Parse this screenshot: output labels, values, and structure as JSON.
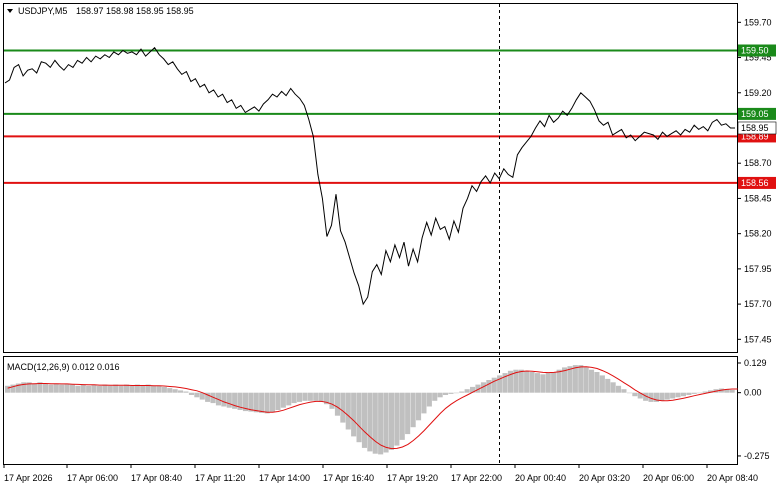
{
  "header": {
    "symbol": "USDJPY,M5",
    "ohlc": "158.97 158.98 158.95 158.95",
    "arrow": "triangle-down-icon"
  },
  "macd_header": "MACD(12,26,9) 0.012 0.016",
  "chart_data": [
    {
      "type": "line",
      "name": "price",
      "ylim": [
        157.36,
        159.83
      ],
      "y_ticks": [
        "159.70",
        "159.45",
        "159.20",
        "158.95",
        "158.70",
        "158.45",
        "158.20",
        "157.95",
        "157.70",
        "157.45"
      ],
      "x_labels": [
        "17 Apr 2026",
        "17 Apr 06:00",
        "17 Apr 08:40",
        "17 Apr 11:20",
        "17 Apr 14:00",
        "17 Apr 16:40",
        "17 Apr 19:20",
        "17 Apr 22:00",
        "20 Apr 00:40",
        "20 Apr 03:20",
        "20 Apr 06:00",
        "20 Apr 08:40"
      ],
      "levels": [
        {
          "label": "159.50",
          "value": 159.5,
          "color": "#1a8a1a"
        },
        {
          "label": "159.05",
          "value": 159.05,
          "color": "#1a8a1a"
        },
        {
          "label": "158.89",
          "value": 158.89,
          "color": "#e01010"
        },
        {
          "label": "158.56",
          "value": 158.56,
          "color": "#e01010"
        }
      ],
      "current_price": {
        "label": "158.95",
        "value": 158.95
      },
      "session_divider_label": "17 Apr 22:00",
      "close": [
        159.27,
        159.29,
        159.38,
        159.4,
        159.32,
        159.36,
        159.37,
        159.34,
        159.42,
        159.41,
        159.38,
        159.43,
        159.39,
        159.36,
        159.4,
        159.38,
        159.43,
        159.41,
        159.45,
        159.42,
        159.46,
        159.44,
        159.47,
        159.45,
        159.49,
        159.47,
        159.5,
        159.48,
        159.49,
        159.47,
        159.51,
        159.46,
        159.49,
        159.52,
        159.47,
        159.44,
        159.4,
        159.42,
        159.37,
        159.33,
        159.35,
        159.28,
        159.3,
        159.24,
        159.26,
        159.2,
        159.22,
        159.17,
        159.19,
        159.13,
        159.15,
        159.09,
        159.11,
        159.06,
        159.08,
        159.1,
        159.07,
        159.12,
        159.15,
        159.19,
        159.17,
        159.21,
        159.18,
        159.23,
        159.19,
        159.16,
        159.11,
        159.01,
        158.89,
        158.62,
        158.45,
        158.18,
        158.26,
        158.48,
        158.22,
        158.14,
        158.03,
        157.92,
        157.83,
        157.7,
        157.75,
        157.93,
        157.98,
        157.91,
        158.08,
        158.0,
        158.12,
        158.03,
        158.14,
        157.97,
        158.09,
        158.0,
        158.17,
        158.28,
        158.19,
        158.31,
        158.23,
        158.25,
        158.16,
        158.29,
        158.21,
        158.38,
        158.45,
        158.54,
        158.5,
        158.57,
        158.61,
        158.56,
        158.63,
        158.59,
        158.66,
        158.62,
        158.6,
        158.76,
        158.81,
        158.85,
        158.89,
        158.95,
        159.0,
        158.96,
        159.04,
        158.99,
        159.02,
        159.07,
        159.04,
        159.09,
        159.15,
        159.2,
        159.17,
        159.14,
        159.08,
        159.0,
        158.97,
        158.99,
        158.9,
        158.92,
        158.94,
        158.88,
        158.9,
        158.86,
        158.89,
        158.92,
        158.91,
        158.9,
        158.87,
        158.92,
        158.89,
        158.91,
        158.93,
        158.9,
        158.94,
        158.92,
        158.97,
        158.94,
        158.96,
        158.93,
        158.99,
        159.01,
        158.97,
        158.98,
        158.95,
        158.95
      ]
    },
    {
      "type": "bar",
      "name": "MACD",
      "ylim": [
        -0.31,
        0.155
      ],
      "y_ticks": [
        "0.129",
        "0.00",
        "-0.275"
      ],
      "histogram": [
        0.03,
        0.035,
        0.04,
        0.045,
        0.045,
        0.04,
        0.045,
        0.04,
        0.035,
        0.04,
        0.035,
        0.04,
        0.035,
        0.03,
        0.035,
        0.03,
        0.035,
        0.03,
        0.035,
        0.03,
        0.035,
        0.03,
        0.035,
        0.03,
        0.035,
        0.03,
        0.035,
        0.03,
        0.03,
        0.025,
        0.02,
        0.015,
        0.01,
        0.005,
        -0.01,
        -0.02,
        -0.03,
        -0.04,
        -0.045,
        -0.055,
        -0.06,
        -0.065,
        -0.07,
        -0.075,
        -0.08,
        -0.082,
        -0.085,
        -0.088,
        -0.09,
        -0.085,
        -0.075,
        -0.065,
        -0.055,
        -0.045,
        -0.04,
        -0.035,
        -0.035,
        -0.035,
        -0.04,
        -0.05,
        -0.07,
        -0.1,
        -0.13,
        -0.16,
        -0.19,
        -0.215,
        -0.24,
        -0.255,
        -0.265,
        -0.268,
        -0.26,
        -0.248,
        -0.23,
        -0.205,
        -0.18,
        -0.15,
        -0.12,
        -0.09,
        -0.06,
        -0.035,
        -0.02,
        -0.01,
        -0.005,
        0.0,
        0.005,
        0.015,
        0.025,
        0.035,
        0.045,
        0.055,
        0.065,
        0.075,
        0.085,
        0.095,
        0.1,
        0.1,
        0.095,
        0.09,
        0.085,
        0.08,
        0.085,
        0.09,
        0.1,
        0.11,
        0.115,
        0.12,
        0.12,
        0.11,
        0.1,
        0.09,
        0.075,
        0.06,
        0.045,
        0.03,
        0.015,
        0.0,
        -0.015,
        -0.025,
        -0.035,
        -0.04,
        -0.04,
        -0.035,
        -0.03,
        -0.025,
        -0.02,
        -0.015,
        -0.01,
        -0.005,
        0.0,
        0.005,
        0.01,
        0.015,
        0.018,
        0.016,
        0.012
      ],
      "signal": [
        0.02,
        0.026,
        0.032,
        0.036,
        0.038,
        0.039,
        0.04,
        0.04,
        0.039,
        0.039,
        0.038,
        0.038,
        0.037,
        0.036,
        0.035,
        0.034,
        0.034,
        0.033,
        0.033,
        0.032,
        0.032,
        0.032,
        0.032,
        0.031,
        0.031,
        0.031,
        0.031,
        0.03,
        0.03,
        0.029,
        0.027,
        0.025,
        0.022,
        0.018,
        0.013,
        0.008,
        0.0,
        -0.01,
        -0.02,
        -0.03,
        -0.04,
        -0.048,
        -0.056,
        -0.063,
        -0.069,
        -0.074,
        -0.078,
        -0.082,
        -0.085,
        -0.085,
        -0.082,
        -0.076,
        -0.068,
        -0.06,
        -0.052,
        -0.046,
        -0.041,
        -0.038,
        -0.038,
        -0.042,
        -0.05,
        -0.063,
        -0.08,
        -0.1,
        -0.122,
        -0.146,
        -0.17,
        -0.192,
        -0.212,
        -0.228,
        -0.238,
        -0.243,
        -0.242,
        -0.236,
        -0.225,
        -0.208,
        -0.188,
        -0.165,
        -0.14,
        -0.115,
        -0.09,
        -0.068,
        -0.05,
        -0.035,
        -0.022,
        -0.01,
        0.002,
        0.014,
        0.026,
        0.038,
        0.05,
        0.06,
        0.07,
        0.079,
        0.087,
        0.092,
        0.094,
        0.093,
        0.091,
        0.088,
        0.087,
        0.088,
        0.091,
        0.096,
        0.102,
        0.108,
        0.112,
        0.113,
        0.11,
        0.105,
        0.096,
        0.085,
        0.072,
        0.058,
        0.043,
        0.028,
        0.012,
        -0.002,
        -0.015,
        -0.025,
        -0.032,
        -0.035,
        -0.035,
        -0.033,
        -0.029,
        -0.024,
        -0.019,
        -0.013,
        -0.008,
        -0.003,
        0.002,
        0.007,
        0.011,
        0.014,
        0.016,
        0.016
      ]
    }
  ]
}
